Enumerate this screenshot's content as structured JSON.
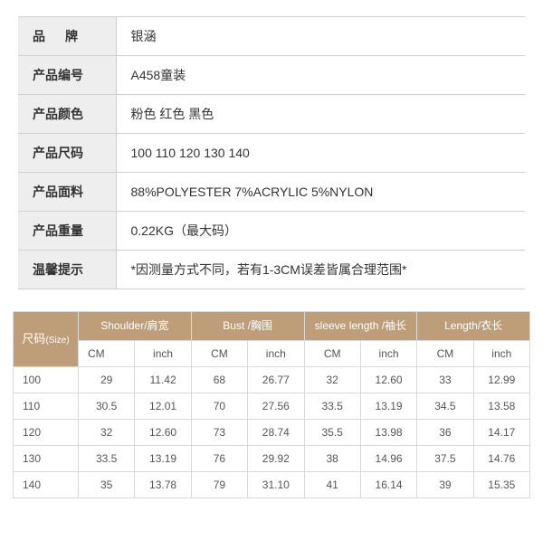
{
  "spec_table": {
    "rows": [
      {
        "label": "品　牌",
        "value": "银涵",
        "tight": false
      },
      {
        "label": "产品编号",
        "value": "A458童装",
        "tight": true
      },
      {
        "label": "产品颜色",
        "value": "粉色  红色  黑色",
        "tight": true
      },
      {
        "label": "产品尺码",
        "value": "100  110  120  130  140",
        "tight": true
      },
      {
        "label": "产品面料",
        "value": "88%POLYESTER  7%ACRYLIC  5%NYLON",
        "tight": true
      },
      {
        "label": "产品重量",
        "value": "0.22KG（最大码）",
        "tight": true
      },
      {
        "label": "温馨提示",
        "value": "*因测量方式不同，若有1-3CM误差皆属合理范围*",
        "tight": true
      }
    ]
  },
  "size_chart": {
    "header_bg": "#be9e79",
    "header_fg": "#ffffff",
    "corner_main": "尺码",
    "corner_sub": "(Size)",
    "group_headers": [
      "Shoulder/肩宽",
      "Bust /胸围",
      "sleeve length /袖长",
      "Length/衣长"
    ],
    "unit_cm": "CM",
    "unit_inch": "inch",
    "rows": [
      {
        "size": "100",
        "cells": [
          "29",
          "11.42",
          "68",
          "26.77",
          "32",
          "12.60",
          "33",
          "12.99"
        ]
      },
      {
        "size": "110",
        "cells": [
          "30.5",
          "12.01",
          "70",
          "27.56",
          "33.5",
          "13.19",
          "34.5",
          "13.58"
        ]
      },
      {
        "size": "120",
        "cells": [
          "32",
          "12.60",
          "73",
          "28.74",
          "35.5",
          "13.98",
          "36",
          "14.17"
        ]
      },
      {
        "size": "130",
        "cells": [
          "33.5",
          "13.19",
          "76",
          "29.92",
          "38",
          "14.96",
          "37.5",
          "14.76"
        ]
      },
      {
        "size": "140",
        "cells": [
          "35",
          "13.78",
          "79",
          "31.10",
          "41",
          "16.14",
          "39",
          "15.35"
        ]
      }
    ]
  }
}
